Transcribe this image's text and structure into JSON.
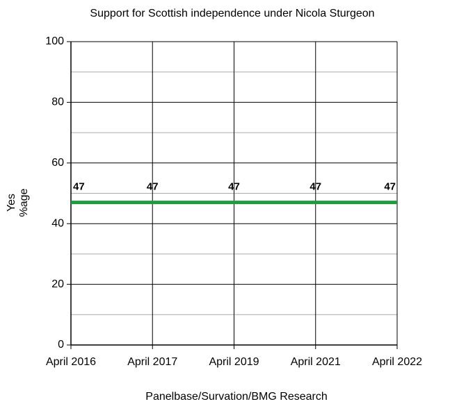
{
  "chart_data": {
    "type": "line",
    "title": "Support for Scottish independence under Nicola Sturgeon",
    "x_label": "Panelbase/Survation/BMG Research",
    "y_label": [
      "Yes",
      "%age"
    ],
    "categories": [
      "April 2016",
      "April 2017",
      "April 2019",
      "April 2021",
      "April 2022"
    ],
    "series": [
      {
        "name": "Yes",
        "color": "#1f9a3e",
        "values": [
          47,
          47,
          47,
          47,
          47
        ]
      }
    ],
    "ylim": [
      0,
      100
    ],
    "yticks": [
      0,
      20,
      40,
      60,
      80,
      100
    ],
    "minor_yticks": [
      10,
      30,
      50,
      70,
      90
    ],
    "grid": true
  }
}
